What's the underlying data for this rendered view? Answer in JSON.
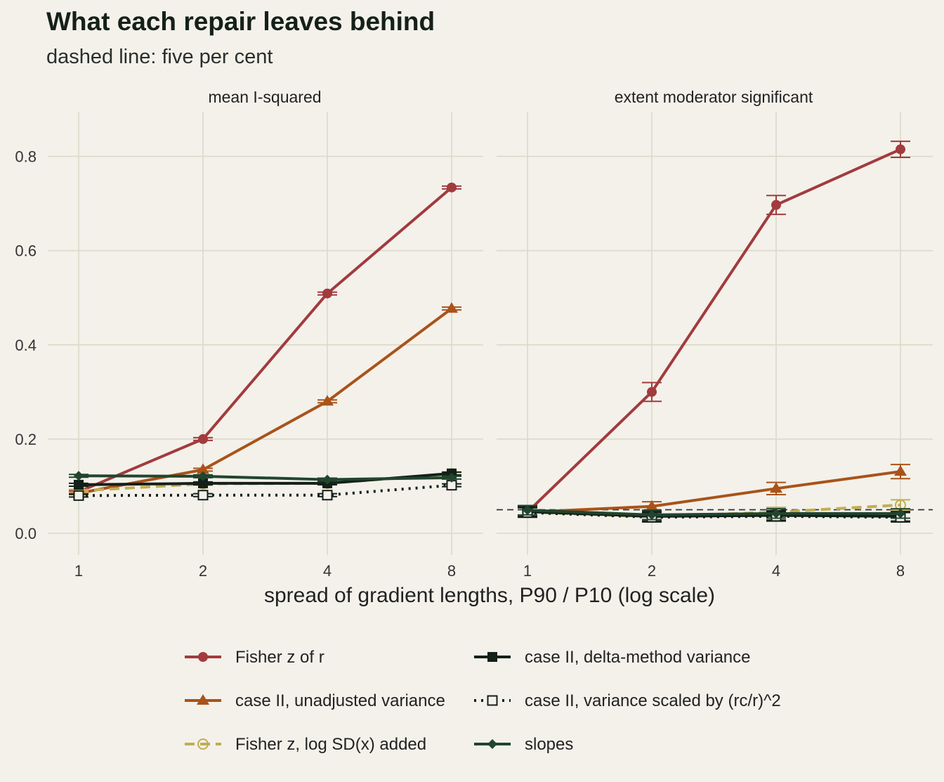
{
  "title": "What each repair leaves behind",
  "subtitle": "dashed line: five per cent",
  "xlabel": "spread of gradient lengths, P90 / P10 (log scale)",
  "reference_line": 0.05,
  "chart_data": {
    "type": "line",
    "x_scale": "log2",
    "x": [
      1,
      2,
      4,
      8
    ],
    "x_tick_labels": [
      "1",
      "2",
      "4",
      "8"
    ],
    "y_ticks": [
      0.0,
      0.2,
      0.4,
      0.6,
      0.8
    ],
    "y_tick_labels": [
      "0.0",
      "0.2",
      "0.4",
      "0.6",
      "0.8"
    ],
    "ylim": [
      -0.02,
      0.9
    ],
    "grid": true,
    "legend_position": "bottom",
    "series_styles": [
      {
        "name": "Fisher z of r",
        "color": "#a23b3e",
        "marker": "circle",
        "dash": "solid"
      },
      {
        "name": "case II, unadjusted variance",
        "color": "#a9531a",
        "marker": "triangle",
        "dash": "solid"
      },
      {
        "name": "Fisher z, log SD(x) added",
        "color": "#c2ad55",
        "marker": "open-circle",
        "dash": "dashed"
      },
      {
        "name": "case II, delta-method variance",
        "color": "#14201a",
        "marker": "square",
        "dash": "solid"
      },
      {
        "name": "case II, variance scaled by (rc/r)^2",
        "color": "#14201a",
        "marker": "open-square",
        "dash": "dotted"
      },
      {
        "name": "slopes",
        "color": "#21452e",
        "marker": "diamond",
        "dash": "solid"
      }
    ],
    "panels": [
      {
        "title": "mean I-squared",
        "series": [
          {
            "name": "Fisher z of r",
            "values": [
              0.088,
              0.2,
              0.509,
              0.734
            ],
            "err": [
              0.003,
              0.003,
              0.003,
              0.003
            ]
          },
          {
            "name": "case II, unadjusted variance",
            "values": [
              0.085,
              0.135,
              0.28,
              0.477
            ],
            "err": [
              0.003,
              0.003,
              0.003,
              0.003
            ]
          },
          {
            "name": "Fisher z, log SD(x) added",
            "values": [
              0.09,
              0.105,
              0.106,
              0.126
            ],
            "err": [
              0.003,
              0.003,
              0.003,
              0.003
            ]
          },
          {
            "name": "case II, delta-method variance",
            "values": [
              0.103,
              0.106,
              0.106,
              0.127
            ],
            "err": [
              0.003,
              0.003,
              0.003,
              0.003
            ]
          },
          {
            "name": "case II, variance scaled by (rc/r)^2",
            "values": [
              0.08,
              0.081,
              0.081,
              0.102
            ],
            "err": [
              0.003,
              0.003,
              0.003,
              0.003
            ]
          },
          {
            "name": "slopes",
            "values": [
              0.122,
              0.121,
              0.114,
              0.118
            ],
            "err": [
              0.003,
              0.003,
              0.003,
              0.003
            ]
          }
        ]
      },
      {
        "title": "extent moderator significant",
        "series": [
          {
            "name": "Fisher z of r",
            "values": [
              0.045,
              0.3,
              0.697,
              0.815
            ],
            "err": [
              0.01,
              0.02,
              0.02,
              0.017
            ]
          },
          {
            "name": "case II, unadjusted variance",
            "values": [
              0.045,
              0.057,
              0.095,
              0.131
            ],
            "err": [
              0.01,
              0.01,
              0.013,
              0.015
            ]
          },
          {
            "name": "Fisher z, log SD(x) added",
            "values": [
              0.045,
              0.035,
              0.045,
              0.06
            ],
            "err": [
              0.01,
              0.01,
              0.01,
              0.011
            ]
          },
          {
            "name": "case II, delta-method variance",
            "values": [
              0.046,
              0.036,
              0.038,
              0.036
            ],
            "err": [
              0.01,
              0.01,
              0.01,
              0.01
            ]
          },
          {
            "name": "case II, variance scaled by (rc/r)^2",
            "values": [
              0.044,
              0.034,
              0.036,
              0.034
            ],
            "err": [
              0.01,
              0.01,
              0.01,
              0.01
            ]
          },
          {
            "name": "slopes",
            "values": [
              0.049,
              0.039,
              0.042,
              0.042
            ],
            "err": [
              0.01,
              0.01,
              0.01,
              0.01
            ]
          }
        ]
      }
    ]
  }
}
